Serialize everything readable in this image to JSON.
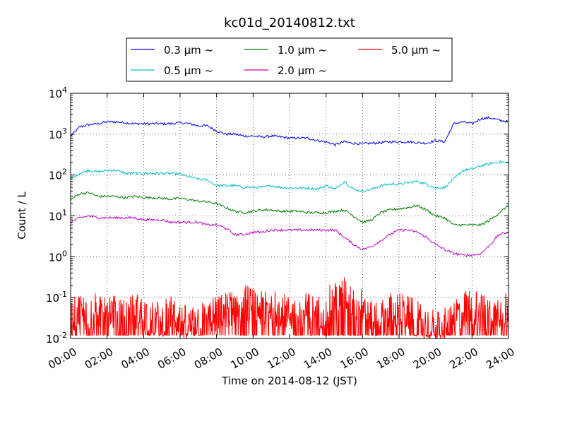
{
  "chart_data": {
    "type": "line",
    "title": "kc01d_20140812.txt",
    "xlabel": "Time on 2014-08-12 (JST)",
    "ylabel": "Count / L",
    "yscale": "log",
    "xlim": [
      "00:00",
      "24:00"
    ],
    "ylim": [
      0.01,
      10000
    ],
    "grid": true,
    "legend_position": "top",
    "x_tick_labels": [
      "00:00",
      "02:00",
      "04:00",
      "06:00",
      "08:00",
      "10:00",
      "12:00",
      "14:00",
      "16:00",
      "18:00",
      "20:00",
      "22:00",
      "24:00"
    ],
    "y_ticks": [
      {
        "value": 0.01,
        "base": "10",
        "exp": "-2"
      },
      {
        "value": 0.1,
        "base": "10",
        "exp": "-1"
      },
      {
        "value": 1,
        "base": "10",
        "exp": "0"
      },
      {
        "value": 10,
        "base": "10",
        "exp": "1"
      },
      {
        "value": 100,
        "base": "10",
        "exp": "2"
      },
      {
        "value": 1000,
        "base": "10",
        "exp": "3"
      },
      {
        "value": 10000,
        "base": "10",
        "exp": "4"
      }
    ],
    "x": [
      "00:00",
      "00:30",
      "01:00",
      "01:30",
      "02:00",
      "02:30",
      "03:00",
      "03:30",
      "04:00",
      "04:30",
      "05:00",
      "05:30",
      "06:00",
      "06:30",
      "07:00",
      "07:30",
      "08:00",
      "08:30",
      "09:00",
      "09:30",
      "10:00",
      "10:30",
      "11:00",
      "11:30",
      "12:00",
      "12:30",
      "13:00",
      "13:30",
      "14:00",
      "14:30",
      "15:00",
      "15:30",
      "16:00",
      "16:30",
      "17:00",
      "17:30",
      "18:00",
      "18:30",
      "19:00",
      "19:30",
      "20:00",
      "20:30",
      "21:00",
      "21:30",
      "22:00",
      "22:30",
      "23:00",
      "23:30",
      "24:00"
    ],
    "series": [
      {
        "name": "0.3 μm ~",
        "color": "#0000ff",
        "values": [
          900,
          1500,
          1700,
          1800,
          2000,
          2000,
          1900,
          1800,
          1800,
          1800,
          1800,
          1800,
          1900,
          1800,
          1600,
          1600,
          1200,
          1000,
          1000,
          900,
          900,
          850,
          900,
          850,
          800,
          800,
          800,
          700,
          650,
          550,
          650,
          600,
          580,
          600,
          620,
          650,
          650,
          650,
          620,
          600,
          700,
          650,
          1800,
          2000,
          1800,
          2400,
          2500,
          2200,
          2000
        ]
      },
      {
        "name": "0.5 μm ~",
        "color": "#00bfbf",
        "values": [
          80,
          110,
          130,
          120,
          130,
          130,
          110,
          110,
          110,
          110,
          110,
          110,
          105,
          90,
          80,
          75,
          55,
          55,
          55,
          50,
          50,
          50,
          55,
          50,
          48,
          48,
          48,
          45,
          55,
          45,
          70,
          45,
          40,
          45,
          55,
          60,
          60,
          65,
          70,
          60,
          48,
          50,
          80,
          130,
          140,
          170,
          190,
          210,
          200
        ]
      },
      {
        "name": "1.0 μm ~",
        "color": "#008000",
        "values": [
          25,
          35,
          37,
          30,
          30,
          30,
          28,
          30,
          28,
          28,
          27,
          26,
          27,
          25,
          23,
          22,
          20,
          16,
          13,
          12,
          13,
          14,
          14,
          13,
          13,
          13,
          12,
          12,
          12,
          13,
          14,
          10,
          7,
          8,
          12,
          14,
          15,
          16,
          18,
          14,
          10,
          9,
          6,
          6,
          6,
          6,
          8,
          12,
          18
        ]
      },
      {
        "name": "2.0 μm ~",
        "color": "#bf00bf",
        "values": [
          7,
          9,
          10,
          9,
          9,
          9,
          9,
          9,
          8,
          8,
          8,
          7,
          7,
          7,
          7,
          6,
          6,
          5,
          3.5,
          3.5,
          4,
          4,
          4.5,
          4.5,
          4.5,
          4.5,
          4.5,
          4.5,
          4.5,
          4.5,
          3,
          2,
          1.5,
          1.8,
          2.5,
          3.5,
          4.5,
          4.5,
          4,
          3,
          2,
          1.5,
          1.2,
          1.1,
          1.1,
          1.2,
          2,
          3.5,
          4
        ]
      },
      {
        "name": "5.0 μm ~",
        "color": "#ff0000",
        "values": [
          0.03,
          0.05,
          0.04,
          0.05,
          0.06,
          0.04,
          0.03,
          0.05,
          0.04,
          0.03,
          0.03,
          0.04,
          0.03,
          0.02,
          0.03,
          0.03,
          0.04,
          0.05,
          0.06,
          0.08,
          0.06,
          0.05,
          0.06,
          0.05,
          0.04,
          0.04,
          0.05,
          0.04,
          0.06,
          0.1,
          0.12,
          0.08,
          0.06,
          0.03,
          0.03,
          0.05,
          0.05,
          0.04,
          0.03,
          0.02,
          0.02,
          0.02,
          0.04,
          0.05,
          0.06,
          0.05,
          0.04,
          0.05,
          0.06
        ]
      }
    ]
  }
}
